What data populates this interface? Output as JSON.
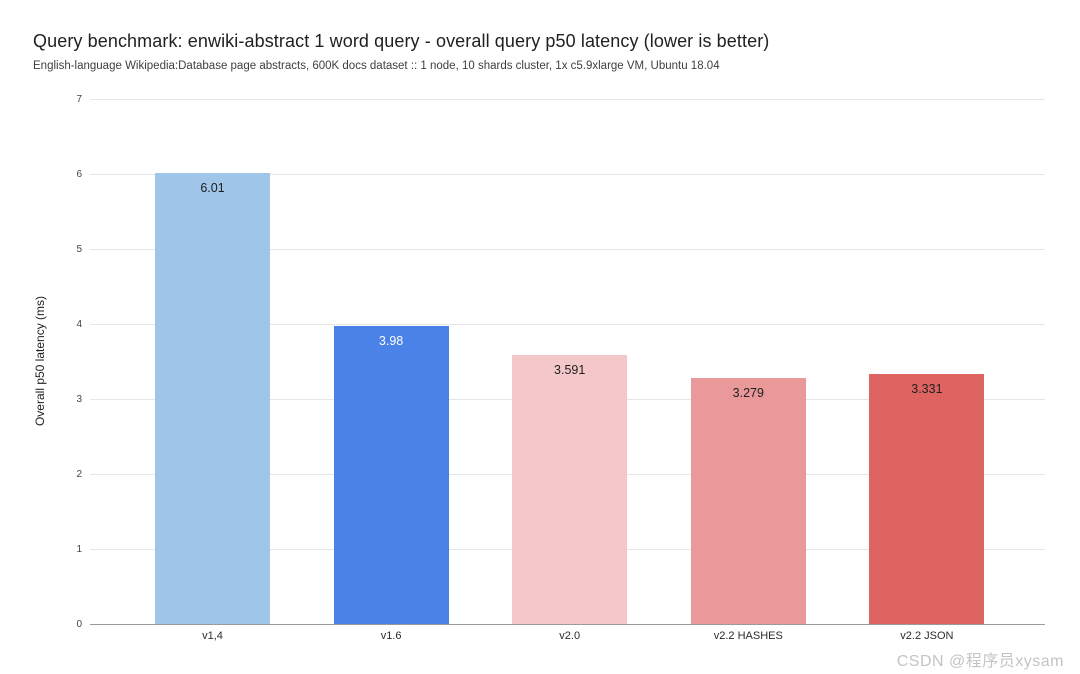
{
  "chart_data": {
    "type": "bar",
    "title": "Query benchmark: enwiki-abstract 1 word query - overall query p50 latency (lower is better)",
    "subtitle": "English-language Wikipedia:Database page abstracts, 600K docs dataset :: 1 node, 10 shards cluster, 1x c5.9xlarge VM, Ubuntu 18.04",
    "xlabel": "",
    "ylabel": "Overall p50 latency (ms)",
    "ylim": [
      0,
      7
    ],
    "ytick_labels": [
      "0",
      "1",
      "2",
      "3",
      "4",
      "5",
      "6",
      "7"
    ],
    "grid": true,
    "legend": "none",
    "categories": [
      "v1,4",
      "v1.6",
      "v2.0",
      "v2.2 HASHES",
      "v2.2 JSON"
    ],
    "values": [
      6.01,
      3.98,
      3.591,
      3.279,
      3.331
    ],
    "value_labels": [
      "6.01",
      "3.98",
      "3.591",
      "3.279",
      "3.331"
    ],
    "bar_colors": [
      "#9fc5e8",
      "#4a82e8",
      "#f4c7cb",
      "#ea999a",
      "#de6462"
    ],
    "value_label_colors": [
      "#1f1f1f",
      "#ffffff",
      "#1f1f1f",
      "#1f1f1f",
      "#1f1f1f"
    ]
  },
  "watermark": {
    "text": "CSDN @程序员xysam",
    "color": "#c4c4c4"
  },
  "colors": {
    "background": "#ffffff",
    "gridline": "#e6e6e6",
    "axis_line": "#9a9a9a"
  }
}
